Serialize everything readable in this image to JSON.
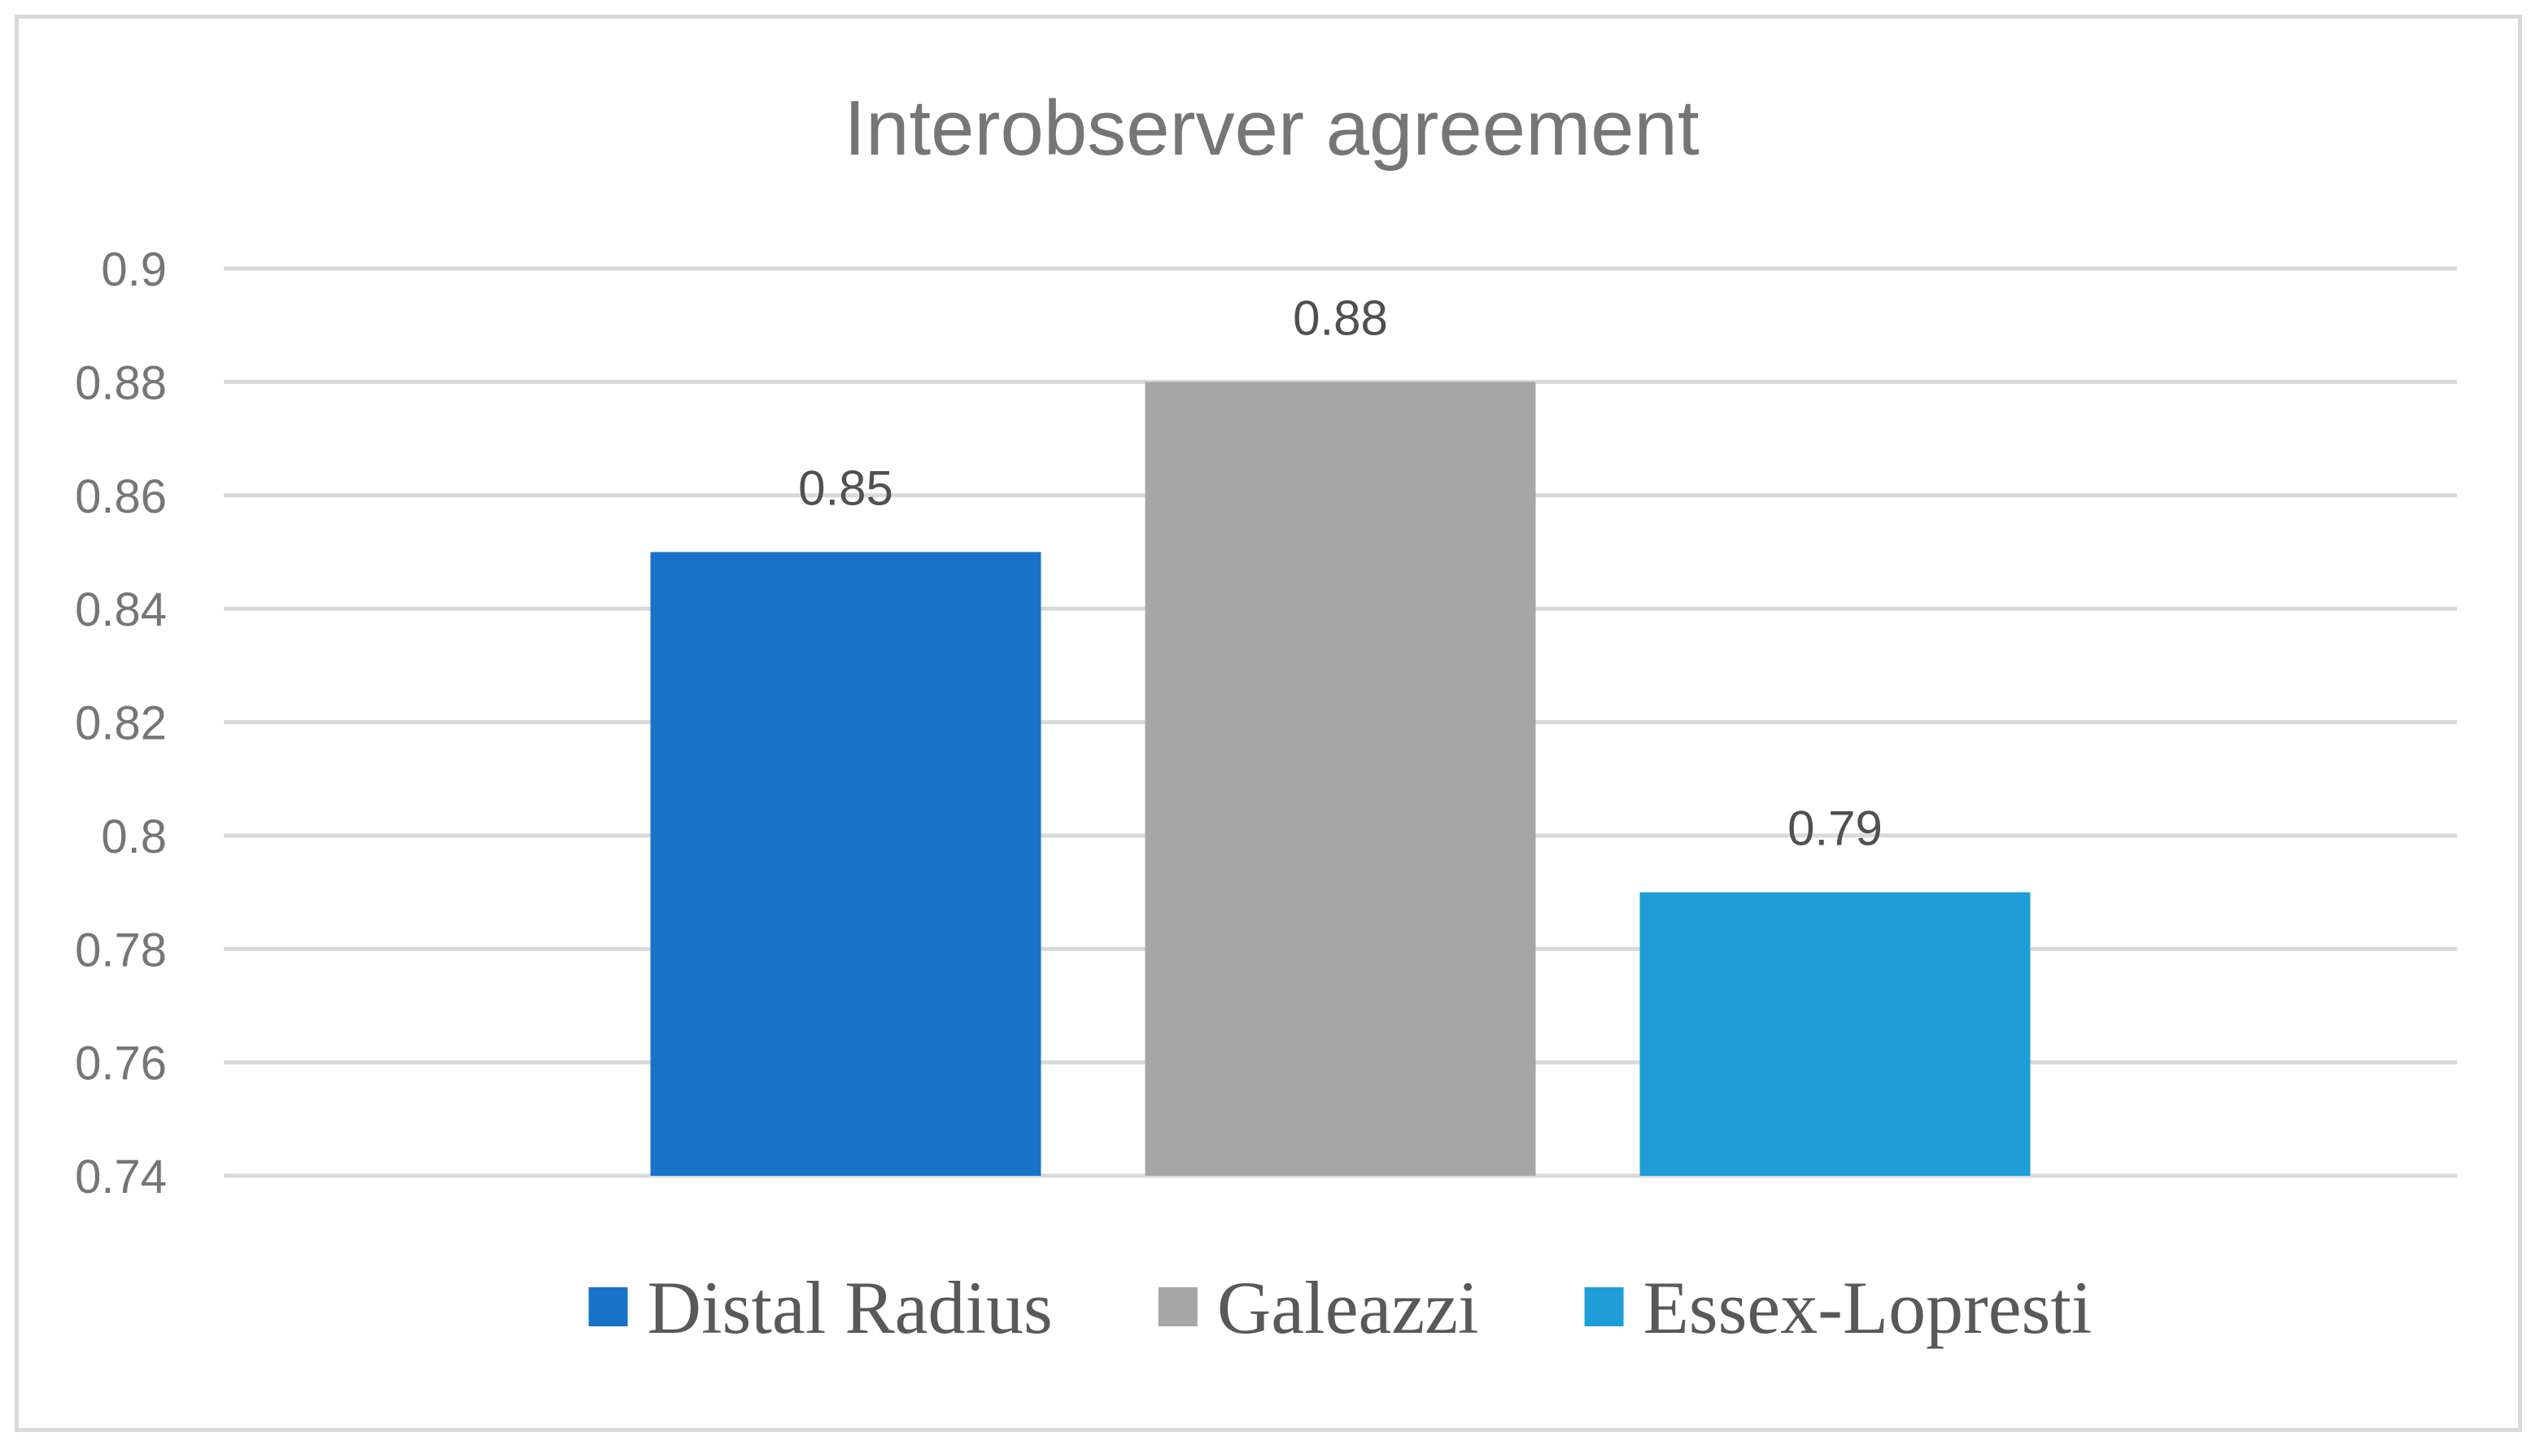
{
  "chart_data": {
    "type": "bar",
    "title": "Interobserver agreement",
    "xlabel": "",
    "ylabel": "",
    "categories": [
      ""
    ],
    "series": [
      {
        "name": "Distal Radius",
        "values": [
          0.85
        ],
        "color": "#1873c8"
      },
      {
        "name": "Galeazzi",
        "values": [
          0.88
        ],
        "color": "#a6a6a6"
      },
      {
        "name": "Essex-Lopresti",
        "values": [
          0.79
        ],
        "color": "#1e9dd8"
      }
    ],
    "ylim": [
      0.74,
      0.9
    ],
    "yticks": [
      "0.74",
      "0.76",
      "0.78",
      "0.8",
      "0.82",
      "0.84",
      "0.86",
      "0.88",
      "0.9"
    ],
    "data_labels": [
      "0.85",
      "0.88",
      "0.79"
    ],
    "grid": true,
    "legend_position": "bottom",
    "gridline_color": "#d9d9d9",
    "border_color": "#d9d9d9"
  }
}
